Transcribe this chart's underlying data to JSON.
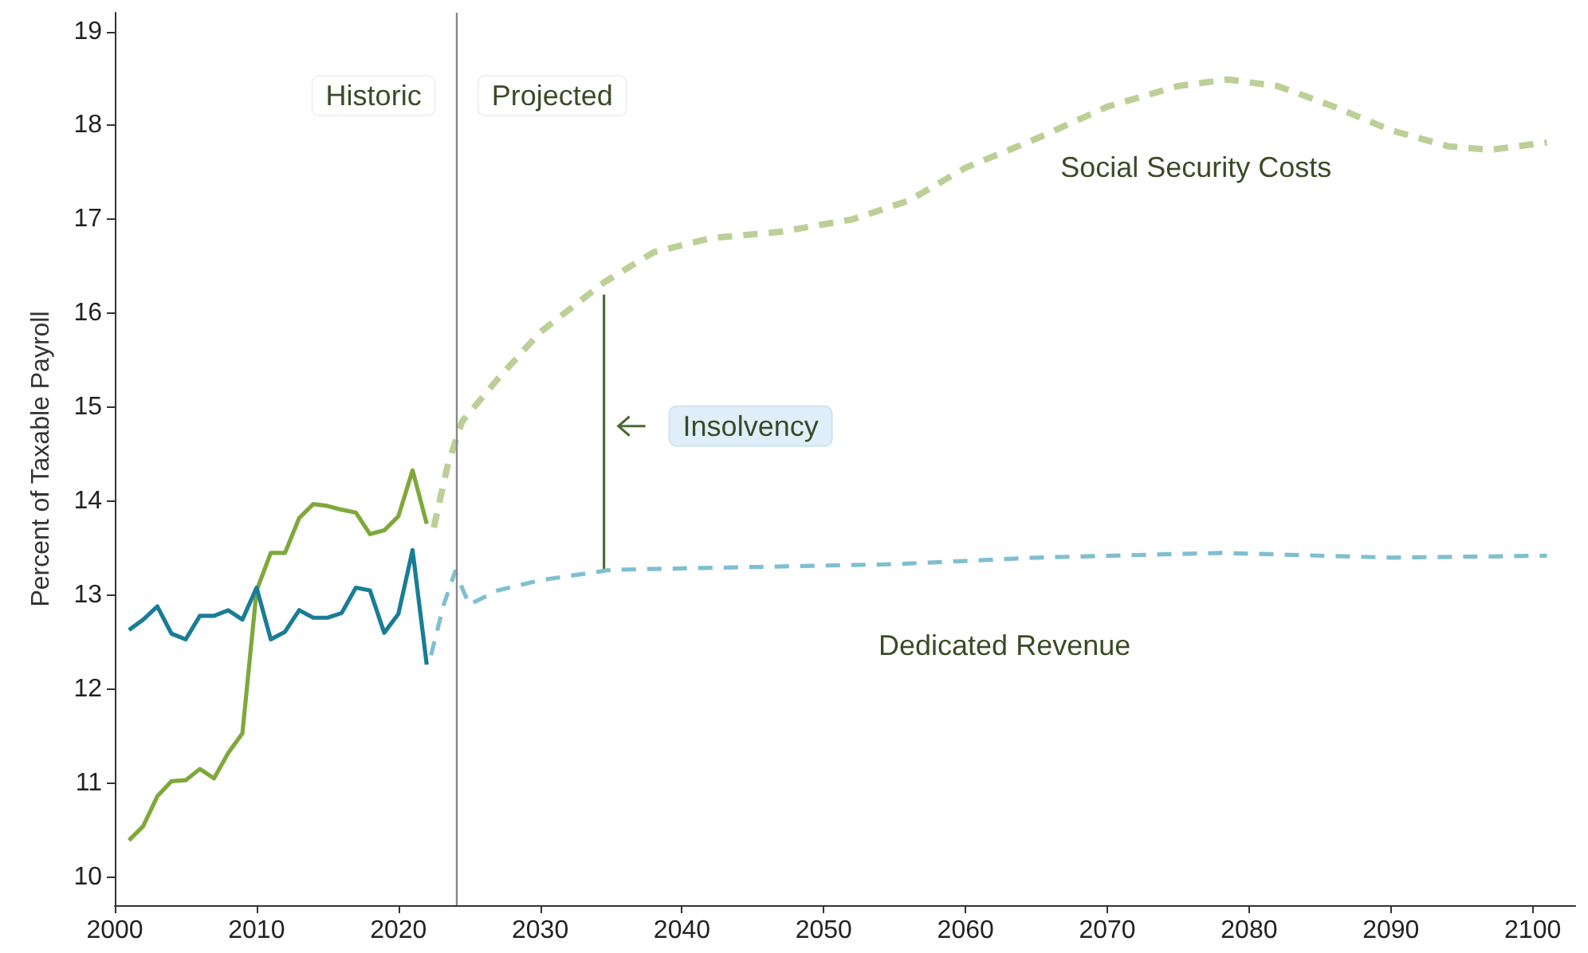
{
  "chart_data": {
    "type": "line",
    "ylabel": "Percent of Taxable Payroll",
    "xlim": [
      2000,
      2103
    ],
    "xticks": [
      2000,
      2010,
      2020,
      2030,
      2040,
      2050,
      2060,
      2070,
      2080,
      2090,
      2100
    ],
    "ylim": [
      9.7,
      19.2
    ],
    "yticks": [
      10,
      11,
      12,
      13,
      14,
      15,
      16,
      17,
      18,
      19
    ],
    "grid": false,
    "marker": "none",
    "series": [
      {
        "color": "#7fa83b",
        "line_style": "solid",
        "x": [
          2001,
          2002,
          2003,
          2004,
          2005,
          2006,
          2007,
          2008,
          2009,
          2010,
          2011,
          2012,
          2013,
          2014,
          2015,
          2016,
          2017,
          2018,
          2019,
          2020,
          2021,
          2022
        ],
        "values": [
          10.39,
          10.54,
          10.86,
          11.02,
          11.03,
          11.15,
          11.05,
          11.32,
          11.53,
          13.05,
          13.45,
          13.45,
          13.82,
          13.97,
          13.95,
          13.91,
          13.88,
          13.65,
          13.69,
          13.84,
          14.33,
          13.76
        ]
      },
      {
        "color": "#1a7d96",
        "line_style": "solid",
        "x": [
          2001,
          2002,
          2003,
          2004,
          2005,
          2006,
          2007,
          2008,
          2009,
          2010,
          2011,
          2012,
          2013,
          2014,
          2015,
          2016,
          2017,
          2018,
          2019,
          2020,
          2021,
          2022
        ],
        "values": [
          12.63,
          12.74,
          12.88,
          12.59,
          12.53,
          12.78,
          12.78,
          12.84,
          12.74,
          13.08,
          12.53,
          12.61,
          12.84,
          12.76,
          12.76,
          12.81,
          13.08,
          13.05,
          12.6,
          12.8,
          13.48,
          12.26
        ]
      },
      {
        "name": "Social Security Costs",
        "color": "#bccf96",
        "line_style": "dashed",
        "x": [
          2022.5,
          2023.5,
          2024.5,
          2027,
          2030,
          2034.5,
          2038,
          2042,
          2047,
          2052,
          2056,
          2060,
          2065,
          2070,
          2075,
          2078.5,
          2082,
          2086,
          2090,
          2094,
          2097,
          2101
        ],
        "values": [
          13.72,
          14.4,
          14.85,
          15.3,
          15.8,
          16.33,
          16.65,
          16.8,
          16.87,
          17.0,
          17.2,
          17.55,
          17.86,
          18.2,
          18.42,
          18.49,
          18.42,
          18.2,
          17.95,
          17.78,
          17.74,
          17.82
        ]
      },
      {
        "color": "#4e6b34",
        "line_style": "solid",
        "x": [
          2034.5,
          2034.5
        ],
        "values": [
          13.26,
          16.2
        ]
      },
      {
        "name": "Dedicated Revenue",
        "color": "#7fbfd0",
        "line_style": "dashed",
        "x": [
          2022.3,
          2023.2,
          2024,
          2025,
          2027,
          2030,
          2035,
          2045,
          2055,
          2065,
          2078,
          2090,
          2101
        ],
        "values": [
          12.36,
          12.9,
          13.25,
          12.9,
          13.05,
          13.16,
          13.27,
          13.3,
          13.33,
          13.4,
          13.45,
          13.4,
          13.42
        ]
      }
    ],
    "ref_lines": [
      {
        "axis": "x",
        "value": 2024.1,
        "color": "#888888"
      }
    ],
    "annotations": [
      "Historic",
      "Projected",
      {
        "text": "Insolvency",
        "x": 2034.5,
        "y": 14.8
      }
    ]
  }
}
